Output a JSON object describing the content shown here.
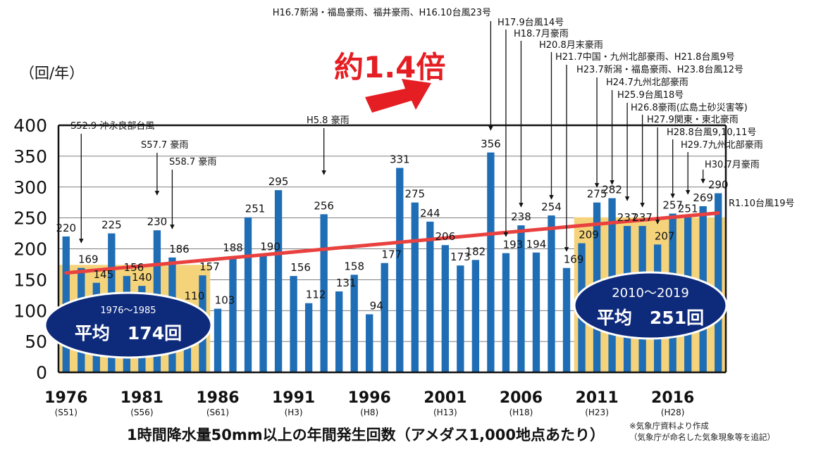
{
  "chart_data": {
    "type": "bar",
    "categories": [
      1976,
      1977,
      1978,
      1979,
      1980,
      1981,
      1982,
      1983,
      1984,
      1985,
      1986,
      1987,
      1988,
      1989,
      1990,
      1991,
      1992,
      1993,
      1994,
      1995,
      1996,
      1997,
      1998,
      1999,
      2000,
      2001,
      2002,
      2003,
      2004,
      2005,
      2006,
      2007,
      2008,
      2009,
      2010,
      2011,
      2012,
      2013,
      2014,
      2015,
      2016,
      2017,
      2018,
      2019
    ],
    "values": [
      220,
      169,
      145,
      225,
      156,
      140,
      230,
      186,
      110,
      157,
      103,
      188,
      251,
      190,
      295,
      156,
      112,
      256,
      131,
      158,
      94,
      177,
      331,
      275,
      244,
      206,
      173,
      182,
      356,
      193,
      238,
      194,
      254,
      169,
      209,
      275,
      282,
      237,
      237,
      207,
      257,
      251,
      269,
      290
    ],
    "ylim": [
      0,
      400
    ],
    "yticks": [
      "0",
      "50",
      "100",
      "150",
      "200",
      "250",
      "300",
      "350",
      "400"
    ],
    "ylabel": "（回/年）",
    "xlabel": "1時間降水量50mm以上の年間発生回数（アメダス1,000地点あたり）",
    "xtick_labels": [
      {
        "year": "1976",
        "era": "(S51)"
      },
      {
        "year": "1981",
        "era": "(S56)"
      },
      {
        "year": "1986",
        "era": "(S61)"
      },
      {
        "year": "1991",
        "era": "(H3)"
      },
      {
        "year": "1996",
        "era": "(H8)"
      },
      {
        "year": "2001",
        "era": "(H13)"
      },
      {
        "year": "2006",
        "era": "(H18)"
      },
      {
        "year": "2011",
        "era": "(H23)"
      },
      {
        "year": "2016",
        "era": "(H28)"
      }
    ],
    "averages": [
      {
        "range": "1976〜1985",
        "label": "平均　174回",
        "value": 174,
        "start": 1976,
        "end": 1985
      },
      {
        "range": "2010〜2019",
        "label": "平均　251回",
        "value": 251,
        "start": 2010,
        "end": 2019
      }
    ],
    "trend": {
      "from": 161,
      "to": 258
    },
    "ratio_label": "約1.4倍",
    "annotations": [
      {
        "year": 1977,
        "text": "S52.9 沖永良部台風"
      },
      {
        "year": 1982,
        "text": "S57.7 豪雨"
      },
      {
        "year": 1983,
        "text": "S58.7 豪雨"
      },
      {
        "year": 1993,
        "text": "H5.8 豪雨"
      },
      {
        "year": 2004,
        "text": "H16.7新潟・福島豪雨、福井豪雨、H16.10台風23号"
      },
      {
        "year": 2005,
        "text": "H17.9台風14号"
      },
      {
        "year": 2006,
        "text": "H18.7月豪雨"
      },
      {
        "year": 2008,
        "text": "H20.8月末豪雨"
      },
      {
        "year": 2009,
        "text": "H21.7中国・九州北部豪雨、H21.8台風9号"
      },
      {
        "year": 2011,
        "text": "H23.7新潟・福島豪雨、H23.8台風12号"
      },
      {
        "year": 2012,
        "text": "H24.7九州北部豪雨"
      },
      {
        "year": 2013,
        "text": "H25.9台風18号"
      },
      {
        "year": 2014,
        "text": "H26.8豪雨(広島土砂災害等)"
      },
      {
        "year": 2015,
        "text": "H27.9関東・東北豪雨"
      },
      {
        "year": 2016,
        "text": "H28.8台風9,10,11号"
      },
      {
        "year": 2017,
        "text": "H29.7九州北部豪雨"
      },
      {
        "year": 2018,
        "text": "H30.7月豪雨"
      },
      {
        "year": 2019,
        "text": "R1.10台風19号"
      }
    ]
  },
  "colors": {
    "bar": "#1f6db5",
    "average_band": "#f5d37a",
    "trend_line": "#e8413f",
    "oval": "#0e2a7a",
    "arrow": "#e41e23"
  },
  "footnote": [
    "※気象庁資料より作成",
    "（気象庁が命名した気象現象等を追記）"
  ]
}
